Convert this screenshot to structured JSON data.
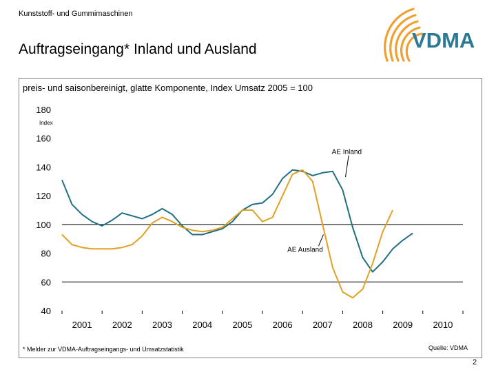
{
  "header": {
    "org_line": "Kunststoff- und Gummimaschinen",
    "title": "Auftragseingang* Inland und Ausland"
  },
  "logo": {
    "text": "VDMA",
    "color": "#2b7a95",
    "arc_color": "#f0a030"
  },
  "footer": {
    "footnote": "* Melder zur VDMA-Auftragseingangs- und Umsatzstatistik",
    "source": "Quelle: VDMA",
    "page_number": "2"
  },
  "chart_data": {
    "type": "line",
    "subtitle": "preis- und saisonbereinigt, glatte Komponente, Index Umsatz 2005 = 100",
    "ylabel": "Index",
    "ylim": [
      40,
      180
    ],
    "yticks": [
      40,
      60,
      80,
      100,
      120,
      140,
      160,
      180
    ],
    "xlim": [
      2000.5,
      2010.5
    ],
    "xticks": [
      "2001",
      "2002",
      "2003",
      "2004",
      "2005",
      "2006",
      "2007",
      "2008",
      "2009",
      "2010"
    ],
    "gridlines_y": [
      60,
      100
    ],
    "series": [
      {
        "name": "AE Inland",
        "color": "#1f6e85",
        "points": [
          [
            2000.5,
            131
          ],
          [
            2000.75,
            114
          ],
          [
            2001.0,
            107
          ],
          [
            2001.25,
            102
          ],
          [
            2001.5,
            99
          ],
          [
            2001.75,
            103
          ],
          [
            2002.0,
            108
          ],
          [
            2002.25,
            106
          ],
          [
            2002.5,
            104
          ],
          [
            2002.75,
            107
          ],
          [
            2003.0,
            111
          ],
          [
            2003.25,
            107
          ],
          [
            2003.5,
            99
          ],
          [
            2003.75,
            93
          ],
          [
            2004.0,
            93
          ],
          [
            2004.25,
            95
          ],
          [
            2004.5,
            97
          ],
          [
            2004.75,
            102
          ],
          [
            2005.0,
            110
          ],
          [
            2005.25,
            114
          ],
          [
            2005.5,
            115
          ],
          [
            2005.75,
            121
          ],
          [
            2006.0,
            132
          ],
          [
            2006.25,
            138
          ],
          [
            2006.5,
            137
          ],
          [
            2006.75,
            134
          ],
          [
            2007.0,
            136
          ],
          [
            2007.25,
            137
          ],
          [
            2007.5,
            124
          ],
          [
            2007.75,
            98
          ],
          [
            2008.0,
            77
          ],
          [
            2008.25,
            67
          ],
          [
            2008.5,
            74
          ],
          [
            2008.75,
            83
          ],
          [
            2009.0,
            89
          ],
          [
            2009.25,
            94
          ]
        ]
      },
      {
        "name": "AE Ausland",
        "color": "#e0a020",
        "points": [
          [
            2000.5,
            93
          ],
          [
            2000.75,
            86
          ],
          [
            2001.0,
            84
          ],
          [
            2001.25,
            83
          ],
          [
            2001.5,
            83
          ],
          [
            2001.75,
            83
          ],
          [
            2002.0,
            84
          ],
          [
            2002.25,
            86
          ],
          [
            2002.5,
            92
          ],
          [
            2002.75,
            101
          ],
          [
            2003.0,
            105
          ],
          [
            2003.25,
            102
          ],
          [
            2003.5,
            98
          ],
          [
            2003.75,
            96
          ],
          [
            2004.0,
            95
          ],
          [
            2004.25,
            96
          ],
          [
            2004.5,
            98
          ],
          [
            2004.75,
            104
          ],
          [
            2005.0,
            110
          ],
          [
            2005.25,
            110
          ],
          [
            2005.5,
            102
          ],
          [
            2005.75,
            105
          ],
          [
            2006.0,
            120
          ],
          [
            2006.25,
            135
          ],
          [
            2006.5,
            138
          ],
          [
            2006.75,
            130
          ],
          [
            2007.0,
            100
          ],
          [
            2007.25,
            70
          ],
          [
            2007.5,
            53
          ],
          [
            2007.75,
            49
          ],
          [
            2008.0,
            55
          ],
          [
            2008.25,
            73
          ],
          [
            2008.5,
            95
          ],
          [
            2008.75,
            110
          ]
        ]
      }
    ],
    "annotations": [
      {
        "text": "AE Inland",
        "series_index": 0
      },
      {
        "text": "AE Ausland",
        "series_index": 1
      }
    ]
  }
}
